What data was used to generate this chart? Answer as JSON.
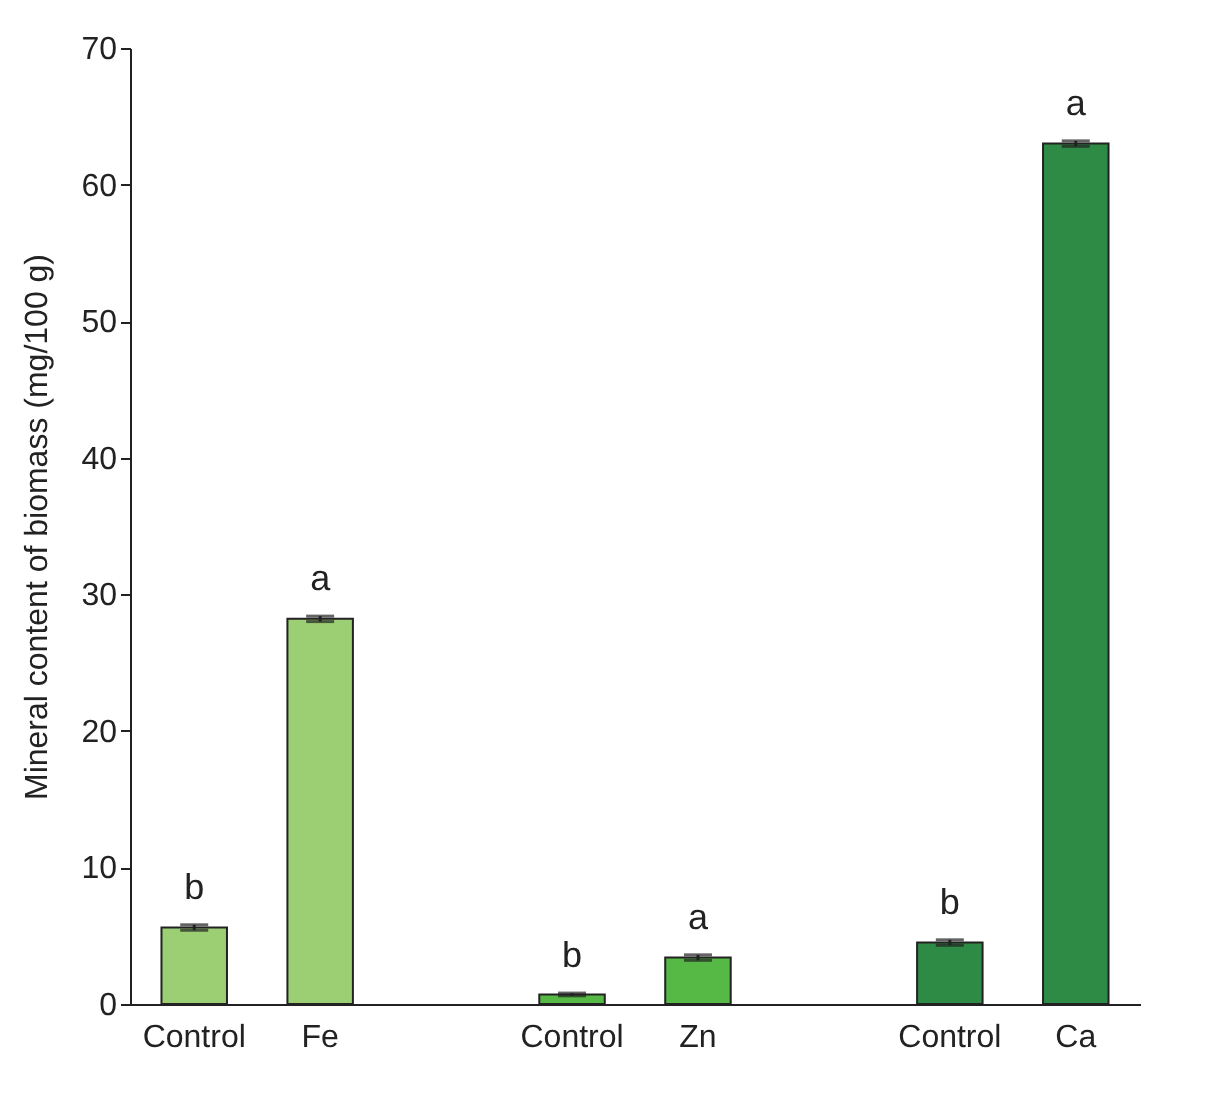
{
  "chart_data": {
    "type": "bar",
    "ylabel": "Mineral content of biomass (mg/100 g)",
    "categories": [
      "Control",
      "Fe",
      "Control",
      "Zn",
      "Control",
      "Ca"
    ],
    "series": [
      {
        "color": "#9ccf74",
        "values": [
          5.6,
          28.2,
          null,
          null,
          null,
          null
        ],
        "errors": [
          0.2,
          0.2,
          null,
          null,
          null,
          null
        ],
        "value_labels": [
          "b",
          "a",
          null,
          null,
          null,
          null
        ]
      },
      {
        "color": "#56b845",
        "values": [
          null,
          null,
          0.7,
          3.4,
          null,
          null
        ],
        "errors": [
          null,
          null,
          0.1,
          0.2,
          null,
          null
        ],
        "value_labels": [
          null,
          null,
          "b",
          "a",
          null,
          null
        ]
      },
      {
        "color": "#2e8b45",
        "values": [
          null,
          null,
          null,
          null,
          4.5,
          63.0
        ],
        "errors": [
          null,
          null,
          null,
          null,
          0.2,
          0.2
        ],
        "value_labels": [
          null,
          null,
          null,
          null,
          "b",
          "a"
        ]
      }
    ],
    "ylim": [
      0,
      70
    ],
    "yticks": [
      0,
      10,
      20,
      30,
      40,
      50,
      60,
      70
    ],
    "grid": false
  }
}
